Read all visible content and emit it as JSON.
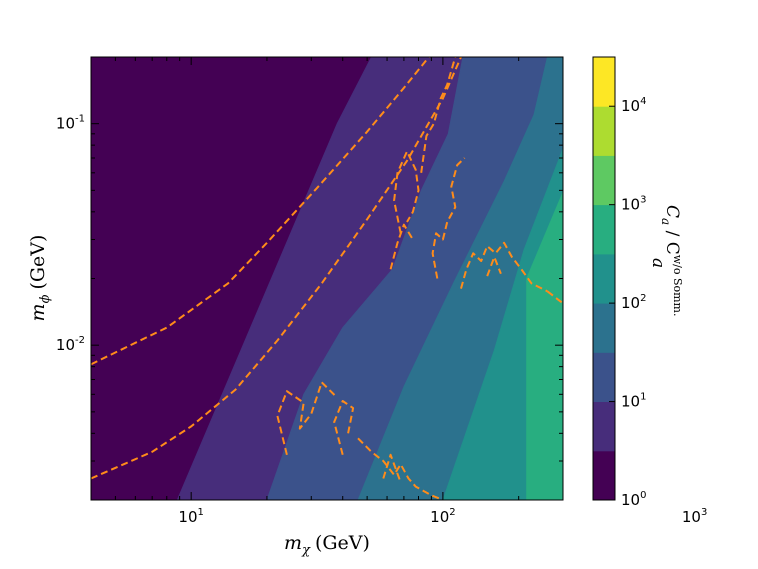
{
  "chart_data": {
    "type": "heatmap",
    "title": "",
    "xlabel": {
      "sym": "m",
      "sub": "χ",
      "unit": "(GeV)"
    },
    "ylabel": {
      "sym": "m",
      "sub": "ϕ",
      "unit": "(GeV)"
    },
    "x_scale": "log",
    "y_scale": "log",
    "xlim": [
      4.0,
      300
    ],
    "ylim": [
      0.002,
      0.2
    ],
    "x_ticks": [
      {
        "value": 10,
        "base": "10",
        "exp": "1"
      },
      {
        "value": 100,
        "base": "10",
        "exp": "2"
      },
      {
        "value": 1000,
        "base": "10",
        "exp": "3"
      }
    ],
    "y_ticks": [
      {
        "value": 0.01,
        "base": "10",
        "exp": "-2"
      },
      {
        "value": 0.1,
        "base": "10",
        "exp": "-1"
      }
    ],
    "colorbar": {
      "scale": "log",
      "label": {
        "sym": "C",
        "sub": "a",
        "mid": " / C",
        "sup2": "w/o Somm.",
        "sub2": "a"
      },
      "range": [
        1,
        31623
      ],
      "ticks": [
        {
          "value": 1,
          "base": "10",
          "exp": "0"
        },
        {
          "value": 10,
          "base": "10",
          "exp": "1"
        },
        {
          "value": 100,
          "base": "10",
          "exp": "2"
        },
        {
          "value": 1000,
          "base": "10",
          "exp": "3"
        },
        {
          "value": 10000,
          "base": "10",
          "exp": "4"
        }
      ],
      "levels": [
        "#440154",
        "#472d7b",
        "#3b528b",
        "#2c728e",
        "#21918c",
        "#28ae80",
        "#5ec962",
        "#addc30",
        "#fde725"
      ]
    },
    "regions": [
      {
        "level": 0,
        "points": [
          [
            4.0,
            0.002
          ],
          [
            8.8,
            0.002
          ],
          [
            38,
            0.1
          ],
          [
            52,
            0.2
          ],
          [
            4.0,
            0.2
          ]
        ]
      },
      {
        "level": 1,
        "points": [
          [
            8.8,
            0.002
          ],
          [
            20,
            0.002
          ],
          [
            28,
            0.006
          ],
          [
            40,
            0.012
          ],
          [
            63,
            0.022
          ],
          [
            82,
            0.05
          ],
          [
            105,
            0.09
          ],
          [
            120,
            0.2
          ],
          [
            52,
            0.2
          ],
          [
            38,
            0.1
          ]
        ]
      },
      {
        "level": 2,
        "points": [
          [
            20,
            0.002
          ],
          [
            46,
            0.002
          ],
          [
            70,
            0.0065
          ],
          [
            110,
            0.019
          ],
          [
            175,
            0.055
          ],
          [
            230,
            0.11
          ],
          [
            260,
            0.2
          ],
          [
            120,
            0.2
          ],
          [
            105,
            0.09
          ],
          [
            82,
            0.05
          ],
          [
            63,
            0.022
          ],
          [
            40,
            0.012
          ],
          [
            28,
            0.006
          ]
        ]
      },
      {
        "level": 3,
        "points": [
          [
            46,
            0.002
          ],
          [
            100,
            0.002
          ],
          [
            160,
            0.0095
          ],
          [
            210,
            0.027
          ],
          [
            310,
            0.085
          ],
          [
            350,
            0.2
          ],
          [
            260,
            0.2
          ],
          [
            230,
            0.11
          ],
          [
            175,
            0.055
          ],
          [
            110,
            0.019
          ],
          [
            70,
            0.0065
          ]
        ]
      },
      {
        "level": 4,
        "points": [
          [
            100,
            0.002
          ],
          [
            215,
            0.002
          ],
          [
            215,
            0.02
          ],
          [
            390,
            0.1
          ],
          [
            440,
            0.2
          ],
          [
            350,
            0.2
          ],
          [
            310,
            0.085
          ],
          [
            210,
            0.027
          ],
          [
            160,
            0.0095
          ]
        ]
      },
      {
        "level": 5,
        "points": [
          [
            215,
            0.002
          ],
          [
            480,
            0.002
          ],
          [
            480,
            0.05
          ],
          [
            600,
            0.2
          ],
          [
            440,
            0.2
          ],
          [
            390,
            0.1
          ],
          [
            215,
            0.02
          ]
        ]
      },
      {
        "level": 6,
        "points": [
          [
            480,
            0.002
          ],
          [
            1150,
            0.002
          ],
          [
            1150,
            0.09
          ],
          [
            1350,
            0.2
          ],
          [
            600,
            0.2
          ],
          [
            480,
            0.05
          ]
        ]
      },
      {
        "level": 7,
        "points": [
          [
            1150,
            0.002
          ],
          [
            2850,
            0.002
          ],
          [
            2850,
            0.2
          ],
          [
            1350,
            0.2
          ],
          [
            1150,
            0.09
          ]
        ]
      },
      {
        "level": 8,
        "points": [
          [
            2850,
            0.002
          ],
          [
            3000,
            0.002
          ],
          [
            3000,
            0.2
          ],
          [
            2850,
            0.2
          ]
        ]
      }
    ],
    "dashed_curves": [
      [
        [
          4.0,
          0.0082
        ],
        [
          8,
          0.012
        ],
        [
          14,
          0.019
        ],
        [
          20,
          0.029
        ],
        [
          32,
          0.052
        ],
        [
          50,
          0.092
        ],
        [
          70,
          0.145
        ],
        [
          88,
          0.2
        ]
      ],
      [
        [
          4.0,
          0.0025
        ],
        [
          7,
          0.0033
        ],
        [
          10,
          0.0043
        ],
        [
          15,
          0.0063
        ],
        [
          22,
          0.0105
        ],
        [
          33,
          0.019
        ],
        [
          50,
          0.037
        ],
        [
          72,
          0.068
        ],
        [
          100,
          0.13
        ],
        [
          118,
          0.2
        ]
      ],
      [
        [
          24,
          0.0032
        ],
        [
          22,
          0.0048
        ],
        [
          24,
          0.0062
        ],
        [
          28,
          0.0055
        ],
        [
          27,
          0.0042
        ],
        [
          30,
          0.0049
        ],
        [
          33,
          0.0068
        ],
        [
          38,
          0.0058
        ]
      ],
      [
        [
          40,
          0.0032
        ],
        [
          37,
          0.0045
        ],
        [
          40,
          0.0056
        ],
        [
          44,
          0.0052
        ],
        [
          42,
          0.004
        ]
      ],
      [
        [
          46,
          0.0038
        ],
        [
          52,
          0.0033
        ],
        [
          58,
          0.003
        ],
        [
          64,
          0.0026
        ],
        [
          68,
          0.0029
        ],
        [
          73,
          0.0025
        ],
        [
          78,
          0.0023
        ],
        [
          90,
          0.0021
        ],
        [
          100,
          0.002
        ]
      ],
      [
        [
          58,
          0.0025
        ],
        [
          62,
          0.0032
        ],
        [
          68,
          0.0024
        ]
      ],
      [
        [
          68,
          0.032
        ],
        [
          64,
          0.045
        ],
        [
          66,
          0.06
        ],
        [
          72,
          0.075
        ],
        [
          78,
          0.062
        ],
        [
          80,
          0.05
        ],
        [
          76,
          0.04
        ],
        [
          72,
          0.036
        ]
      ],
      [
        [
          62,
          0.022
        ],
        [
          66,
          0.029
        ],
        [
          70,
          0.035
        ],
        [
          76,
          0.03
        ]
      ],
      [
        [
          95,
          0.02
        ],
        [
          91,
          0.026
        ],
        [
          94,
          0.032
        ],
        [
          100,
          0.03
        ],
        [
          104,
          0.036
        ],
        [
          112,
          0.042
        ],
        [
          108,
          0.052
        ],
        [
          114,
          0.065
        ],
        [
          122,
          0.07
        ]
      ],
      [
        [
          82,
          0.06
        ],
        [
          86,
          0.088
        ],
        [
          92,
          0.1
        ],
        [
          98,
          0.13
        ],
        [
          104,
          0.15
        ],
        [
          112,
          0.2
        ]
      ],
      [
        [
          118,
          0.018
        ],
        [
          124,
          0.022
        ],
        [
          132,
          0.026
        ],
        [
          142,
          0.024
        ],
        [
          150,
          0.028
        ],
        [
          162,
          0.026
        ],
        [
          175,
          0.029
        ],
        [
          188,
          0.025
        ],
        [
          205,
          0.022
        ],
        [
          225,
          0.019
        ],
        [
          260,
          0.0175
        ]
      ],
      [
        [
          150,
          0.0205
        ],
        [
          160,
          0.025
        ],
        [
          170,
          0.021
        ]
      ],
      [
        [
          260,
          0.0175
        ],
        [
          310,
          0.015
        ],
        [
          370,
          0.0133
        ],
        [
          430,
          0.0118
        ],
        [
          520,
          0.0102
        ],
        [
          640,
          0.0087
        ],
        [
          800,
          0.0075
        ],
        [
          1000,
          0.0066
        ],
        [
          1300,
          0.0058
        ],
        [
          1700,
          0.0051
        ],
        [
          2200,
          0.0046
        ],
        [
          3000,
          0.004
        ]
      ]
    ]
  }
}
